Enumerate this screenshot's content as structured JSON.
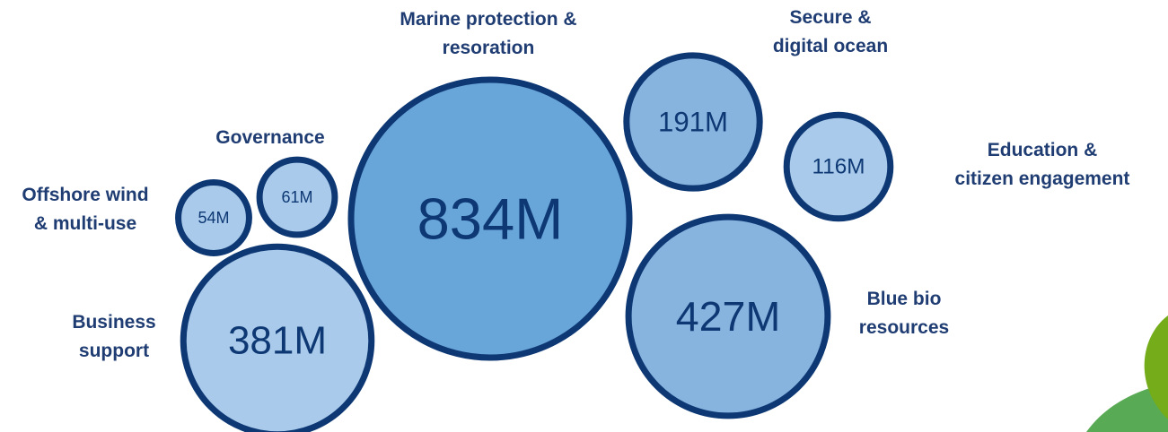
{
  "chart_data": {
    "type": "bubble",
    "title": "",
    "value_unit": "M",
    "bubbles": [
      {
        "category_lines": [
          "Marine protection &",
          "resoration"
        ],
        "value": 834,
        "label": "834M"
      },
      {
        "category_lines": [
          "Blue bio",
          "resources"
        ],
        "value": 427,
        "label": "427M"
      },
      {
        "category_lines": [
          "Business",
          "support"
        ],
        "value": 381,
        "label": "381M"
      },
      {
        "category_lines": [
          "Secure &",
          "digital ocean"
        ],
        "value": 191,
        "label": "191M"
      },
      {
        "category_lines": [
          "Education &",
          "citizen engagement"
        ],
        "value": 116,
        "label": "116M"
      },
      {
        "category_lines": [
          "Governance"
        ],
        "value": 61,
        "label": "61M"
      },
      {
        "category_lines": [
          "Offshore wind",
          "& multi-use"
        ],
        "value": 54,
        "label": "54M"
      }
    ]
  },
  "colors": {
    "outline": "#0d3874",
    "text": "#1f3d73",
    "fill_dark": "#68a5d8",
    "fill_mid": "#86b4df",
    "fill_light": "#a9caea",
    "leaf_green": "#74ac1a",
    "leaf_green_light": "#59aa55"
  }
}
